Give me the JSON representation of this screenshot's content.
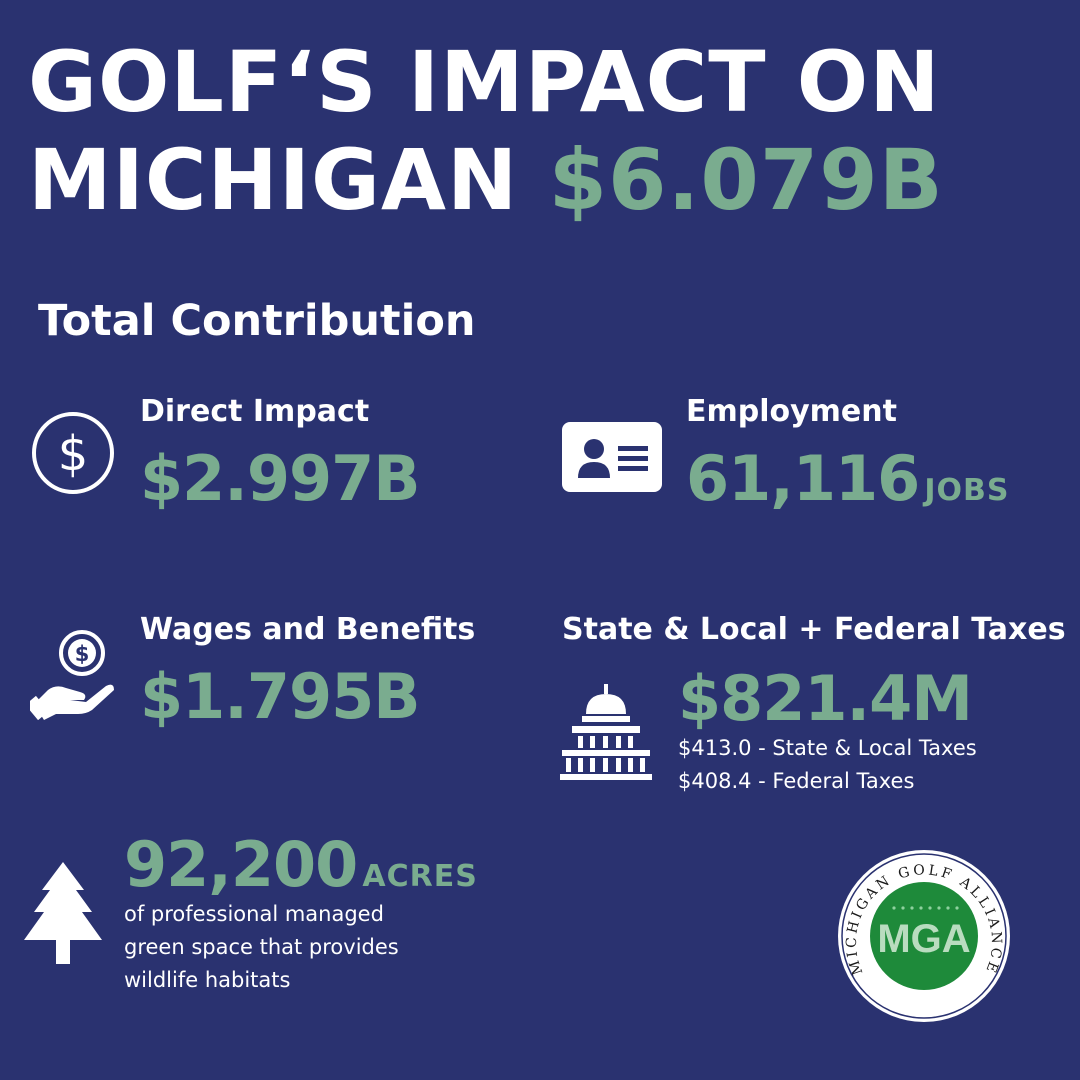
{
  "header": {
    "title_line1": "GOLF‘S IMPACT ON",
    "title_line2_prefix": "MICHIGAN",
    "title_amount": "$6.079B"
  },
  "section_title": "Total Contribution",
  "stats": {
    "direct_impact": {
      "label": "Direct Impact",
      "value": "$2.997B",
      "icon": "dollar-circle-icon"
    },
    "employment": {
      "label": "Employment",
      "value": "61,116",
      "unit": "JOBS",
      "icon": "id-card-icon"
    },
    "wages": {
      "label": "Wages and Benefits",
      "value": "$1.795B",
      "icon": "hand-coin-icon"
    },
    "taxes": {
      "label": "State & Local + Federal Taxes",
      "value": "$821.4M",
      "detail_state": "$413.0 - State & Local Taxes",
      "detail_federal": "$408.4 - Federal Taxes",
      "icon": "capitol-building-icon"
    },
    "acres": {
      "value": "92,200",
      "unit": "ACRES",
      "description_line1": "of professional managed",
      "description_line2": "green space that provides",
      "description_line3": "wildlife habitats",
      "icon": "pine-tree-icon"
    }
  },
  "logo": {
    "ring_text": "MICHIGAN GOLF ALLIANCE",
    "initials": "MGA"
  },
  "colors": {
    "background": "#2a3270",
    "accent": "#7aac8f",
    "text": "#ffffff",
    "logo_green": "#1e8a3a"
  }
}
